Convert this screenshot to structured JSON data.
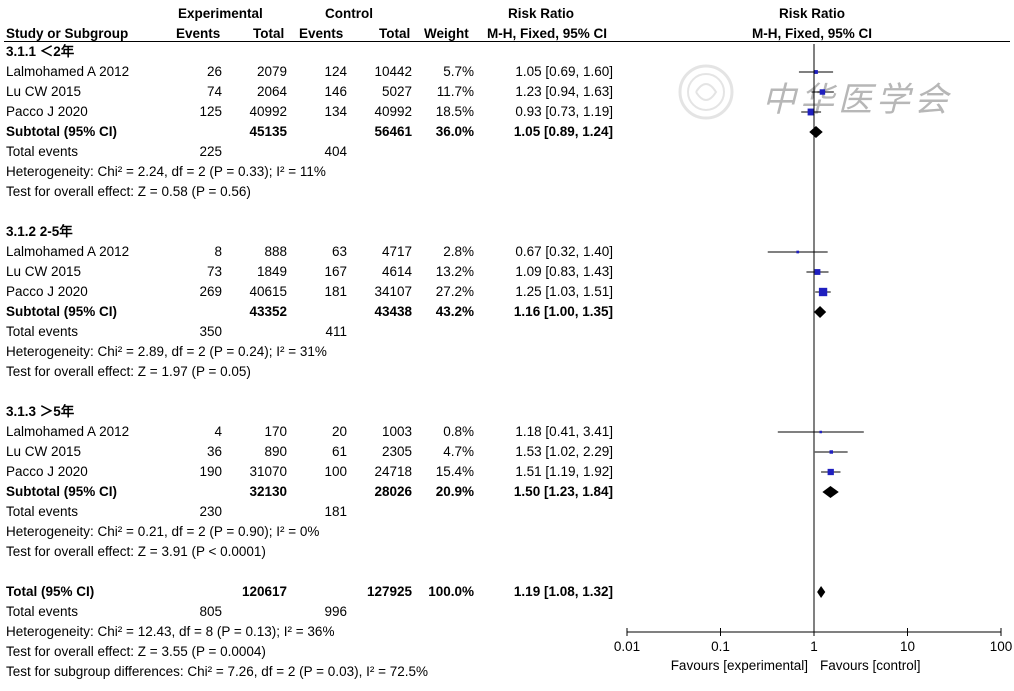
{
  "header": {
    "experimental": "Experimental",
    "control": "Control",
    "risk_ratio": "Risk Ratio",
    "plot_title": "Risk Ratio",
    "study": "Study or Subgroup",
    "events": "Events",
    "total": "Total",
    "events2": "Events",
    "total2": "Total",
    "weight": "Weight",
    "method": "M-H, Fixed, 95% CI",
    "plot_method": "M-H, Fixed, 95% CI"
  },
  "watermark": {
    "text": "中华医学会"
  },
  "chart_data": {
    "type": "forest",
    "scale": "log",
    "xlim": [
      0.01,
      100
    ],
    "ticks": [
      "0.01",
      "0.1",
      "1",
      "10",
      "100"
    ],
    "tick_values": [
      0.01,
      0.1,
      1,
      10,
      100
    ],
    "favours_left": "Favours [experimental]",
    "favours_right": "Favours [control]",
    "subgroups": [
      {
        "title": "3.1.1 ＜2年",
        "studies": [
          {
            "name": "Lalmohamed A 2012",
            "e_events": "26",
            "e_total": "2079",
            "c_events": "124",
            "c_total": "10442",
            "weight": "5.7%",
            "ci": "1.05 [0.69, 1.60]",
            "rr": 1.05,
            "lo": 0.69,
            "hi": 1.6,
            "w": 5.7
          },
          {
            "name": "Lu CW 2015",
            "e_events": "74",
            "e_total": "2064",
            "c_events": "146",
            "c_total": "5027",
            "weight": "11.7%",
            "ci": "1.23 [0.94, 1.63]",
            "rr": 1.23,
            "lo": 0.94,
            "hi": 1.63,
            "w": 11.7
          },
          {
            "name": "Pacco J 2020",
            "e_events": "125",
            "e_total": "40992",
            "c_events": "134",
            "c_total": "40992",
            "weight": "18.5%",
            "ci": "0.93 [0.73, 1.19]",
            "rr": 0.93,
            "lo": 0.73,
            "hi": 1.19,
            "w": 18.5
          }
        ],
        "subtotal": {
          "label": "Subtotal (95% CI)",
          "e_total": "45135",
          "c_total": "56461",
          "weight": "36.0%",
          "ci": "1.05 [0.89, 1.24]",
          "rr": 1.05,
          "lo": 0.89,
          "hi": 1.24
        },
        "total_events": {
          "label": "Total events",
          "e": "225",
          "c": "404"
        },
        "heterogeneity": "Heterogeneity: Chi² = 2.24, df = 2 (P = 0.33); I² = 11%",
        "overall": "Test for overall effect: Z = 0.58 (P = 0.56)"
      },
      {
        "title": "3.1.2 2-5年",
        "studies": [
          {
            "name": "Lalmohamed A 2012",
            "e_events": "8",
            "e_total": "888",
            "c_events": "63",
            "c_total": "4717",
            "weight": "2.8%",
            "ci": "0.67 [0.32, 1.40]",
            "rr": 0.67,
            "lo": 0.32,
            "hi": 1.4,
            "w": 2.8
          },
          {
            "name": "Lu CW 2015",
            "e_events": "73",
            "e_total": "1849",
            "c_events": "167",
            "c_total": "4614",
            "weight": "13.2%",
            "ci": "1.09 [0.83, 1.43]",
            "rr": 1.09,
            "lo": 0.83,
            "hi": 1.43,
            "w": 13.2
          },
          {
            "name": "Pacco J 2020",
            "e_events": "269",
            "e_total": "40615",
            "c_events": "181",
            "c_total": "34107",
            "weight": "27.2%",
            "ci": "1.25 [1.03, 1.51]",
            "rr": 1.25,
            "lo": 1.03,
            "hi": 1.51,
            "w": 27.2
          }
        ],
        "subtotal": {
          "label": "Subtotal (95% CI)",
          "e_total": "43352",
          "c_total": "43438",
          "weight": "43.2%",
          "ci": "1.16 [1.00, 1.35]",
          "rr": 1.16,
          "lo": 1.0,
          "hi": 1.35
        },
        "total_events": {
          "label": "Total events",
          "e": "350",
          "c": "411"
        },
        "heterogeneity": "Heterogeneity: Chi² = 2.89, df = 2 (P = 0.24); I² = 31%",
        "overall": "Test for overall effect: Z = 1.97 (P = 0.05)"
      },
      {
        "title": "3.1.3 ＞5年",
        "studies": [
          {
            "name": "Lalmohamed A 2012",
            "e_events": "4",
            "e_total": "170",
            "c_events": "20",
            "c_total": "1003",
            "weight": "0.8%",
            "ci": "1.18 [0.41, 3.41]",
            "rr": 1.18,
            "lo": 0.41,
            "hi": 3.41,
            "w": 0.8
          },
          {
            "name": "Lu CW 2015",
            "e_events": "36",
            "e_total": "890",
            "c_events": "61",
            "c_total": "2305",
            "weight": "4.7%",
            "ci": "1.53 [1.02, 2.29]",
            "rr": 1.53,
            "lo": 1.02,
            "hi": 2.29,
            "w": 4.7
          },
          {
            "name": "Pacco J 2020",
            "e_events": "190",
            "e_total": "31070",
            "c_events": "100",
            "c_total": "24718",
            "weight": "15.4%",
            "ci": "1.51 [1.19, 1.92]",
            "rr": 1.51,
            "lo": 1.19,
            "hi": 1.92,
            "w": 15.4
          }
        ],
        "subtotal": {
          "label": "Subtotal (95% CI)",
          "e_total": "32130",
          "c_total": "28026",
          "weight": "20.9%",
          "ci": "1.50 [1.23, 1.84]",
          "rr": 1.5,
          "lo": 1.23,
          "hi": 1.84
        },
        "total_events": {
          "label": "Total events",
          "e": "230",
          "c": "181"
        },
        "heterogeneity": "Heterogeneity: Chi² = 0.21, df = 2 (P = 0.90); I² = 0%",
        "overall": "Test for overall effect: Z = 3.91 (P < 0.0001)"
      }
    ],
    "total": {
      "label": "Total (95% CI)",
      "e_total": "120617",
      "c_total": "127925",
      "weight": "100.0%",
      "ci": "1.19 [1.08, 1.32]",
      "rr": 1.19,
      "lo": 1.08,
      "hi": 1.32
    },
    "total_events": {
      "label": "Total events",
      "e": "805",
      "c": "996"
    },
    "heterogeneity": "Heterogeneity: Chi² = 12.43, df = 8 (P = 0.13); I² = 36%",
    "overall": "Test for overall effect: Z = 3.55 (P = 0.0004)",
    "subgroup_diff": "Test for subgroup differences: Chi² = 7.26, df = 2 (P = 0.03), I² = 72.5%",
    "colors": {
      "study_box": "#1f1fbf",
      "diamond": "#000000",
      "line": "#000000"
    }
  }
}
